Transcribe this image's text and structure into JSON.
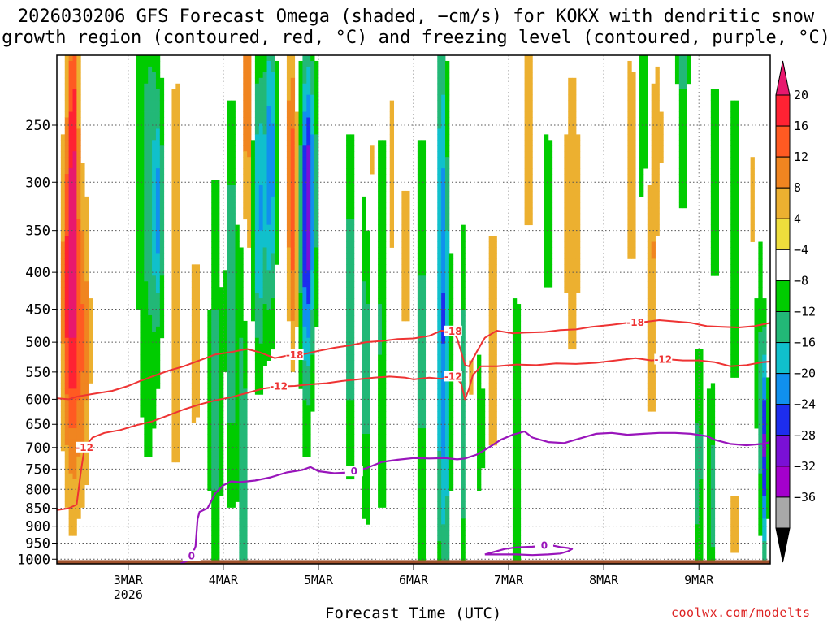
{
  "chart_data": {
    "type": "heatmap",
    "title": [
      "2026030206 GFS Forecast Omega (shaded, −cm/s) for KOKX with dendritic snow",
      "growth region (contoured, red, °C) and freezing level (contoured, purple, °C)"
    ],
    "xlabel": "Forecast Time (UTC)",
    "ylabel": "",
    "credit": "coolwx.com/modelts",
    "y_axis": {
      "units": "hPa",
      "range": [
        1015,
        200
      ],
      "ticks": [
        250,
        300,
        350,
        400,
        450,
        500,
        550,
        600,
        650,
        700,
        750,
        800,
        850,
        900,
        950,
        1000
      ]
    },
    "x_axis": {
      "units": "hours since 2026-03-02 06Z",
      "range": [
        0,
        180
      ],
      "ticks": [
        {
          "hour": 18,
          "label": "3MAR",
          "sublabel": "2026"
        },
        {
          "hour": 42,
          "label": "4MAR",
          "sublabel": ""
        },
        {
          "hour": 66,
          "label": "5MAR",
          "sublabel": ""
        },
        {
          "hour": 90,
          "label": "6MAR",
          "sublabel": ""
        },
        {
          "hour": 114,
          "label": "7MAR",
          "sublabel": ""
        },
        {
          "hour": 138,
          "label": "8MAR",
          "sublabel": ""
        },
        {
          "hour": 162,
          "label": "9MAR",
          "sublabel": ""
        }
      ]
    },
    "colorbar": {
      "labels": [
        "20",
        "16",
        "12",
        "8",
        "4",
        "−4",
        "−8",
        "−12",
        "−16",
        "−20",
        "−24",
        "−28",
        "−32",
        "−36"
      ],
      "levels": [
        20,
        16,
        12,
        8,
        4,
        -4,
        -8,
        -12,
        -16,
        -20,
        -24,
        -28,
        -32,
        -36
      ],
      "colors": [
        "#ff2233",
        "#ff5a22",
        "#f08520",
        "#ecb030",
        "#eede3c",
        "#ffffff",
        "#00cc00",
        "#22b877",
        "#10c0cc",
        "#1090ee",
        "#1d2dee",
        "#7a10d6",
        "#a400cc",
        "#a8a8a8"
      ],
      "over_color": "#e8186e",
      "under_color": "#000000"
    },
    "dgz_contours": [
      {
        "label": "-18",
        "color": "#ee3333",
        "label_at_hours": [
          60,
          100,
          146
        ],
        "points": [
          [
            0,
            598
          ],
          [
            3,
            600
          ],
          [
            5,
            595
          ],
          [
            9,
            590
          ],
          [
            14,
            584
          ],
          [
            18,
            575
          ],
          [
            21,
            566
          ],
          [
            24,
            558
          ],
          [
            28,
            548
          ],
          [
            32,
            540
          ],
          [
            36,
            530
          ],
          [
            40,
            520
          ],
          [
            44,
            516
          ],
          [
            48,
            511
          ],
          [
            51,
            516
          ],
          [
            55,
            526
          ],
          [
            58,
            522
          ],
          [
            62,
            520
          ],
          [
            66,
            514
          ],
          [
            70,
            509
          ],
          [
            74,
            505
          ],
          [
            78,
            500
          ],
          [
            82,
            498
          ],
          [
            86,
            495
          ],
          [
            90,
            494
          ],
          [
            94,
            490
          ],
          [
            97,
            482
          ],
          [
            100,
            483
          ],
          [
            101,
            494
          ],
          [
            102,
            515
          ],
          [
            103,
            538
          ],
          [
            104,
            540
          ],
          [
            106,
            515
          ],
          [
            108,
            493
          ],
          [
            111,
            482
          ],
          [
            115,
            486
          ],
          [
            118,
            485
          ],
          [
            123,
            484
          ],
          [
            127,
            481
          ],
          [
            131,
            480
          ],
          [
            135,
            476
          ],
          [
            140,
            473
          ],
          [
            144,
            470
          ],
          [
            148,
            469
          ],
          [
            152,
            466
          ],
          [
            156,
            468
          ],
          [
            160,
            470
          ],
          [
            164,
            475
          ],
          [
            168,
            476
          ],
          [
            172,
            477
          ],
          [
            176,
            475
          ],
          [
            180,
            470
          ]
        ]
      },
      {
        "label": "-12",
        "color": "#ee3333",
        "label_at_hours": [
          7,
          56,
          100,
          153
        ],
        "points": [
          [
            0,
            855
          ],
          [
            3,
            850
          ],
          [
            5,
            840
          ],
          [
            6,
            760
          ],
          [
            7,
            700
          ],
          [
            9,
            678
          ],
          [
            12,
            668
          ],
          [
            16,
            662
          ],
          [
            20,
            652
          ],
          [
            24,
            644
          ],
          [
            28,
            632
          ],
          [
            32,
            620
          ],
          [
            36,
            610
          ],
          [
            40,
            602
          ],
          [
            44,
            596
          ],
          [
            48,
            588
          ],
          [
            52,
            580
          ],
          [
            56,
            576
          ],
          [
            60,
            575
          ],
          [
            64,
            572
          ],
          [
            68,
            570
          ],
          [
            72,
            566
          ],
          [
            76,
            563
          ],
          [
            80,
            560
          ],
          [
            84,
            558
          ],
          [
            88,
            560
          ],
          [
            90,
            563
          ],
          [
            94,
            560
          ],
          [
            97,
            562
          ],
          [
            100,
            558
          ],
          [
            101,
            563
          ],
          [
            102,
            570
          ],
          [
            103,
            600
          ],
          [
            104,
            580
          ],
          [
            105,
            555
          ],
          [
            107,
            540
          ],
          [
            111,
            540
          ],
          [
            116,
            537
          ],
          [
            121,
            538
          ],
          [
            126,
            535
          ],
          [
            131,
            536
          ],
          [
            136,
            534
          ],
          [
            141,
            530
          ],
          [
            146,
            526
          ],
          [
            150,
            530
          ],
          [
            154,
            528
          ],
          [
            158,
            530
          ],
          [
            162,
            530
          ],
          [
            166,
            533
          ],
          [
            170,
            540
          ],
          [
            174,
            538
          ],
          [
            178,
            533
          ],
          [
            180,
            532
          ]
        ]
      }
    ],
    "freezing_level_contours": [
      {
        "label": "0",
        "color": "#9915bb",
        "label_at_hours": [
          34,
          75
        ],
        "points": [
          [
            31,
            1015
          ],
          [
            33,
            1005
          ],
          [
            34,
            990
          ],
          [
            35,
            960
          ],
          [
            35.5,
            880
          ],
          [
            36,
            860
          ],
          [
            38,
            850
          ],
          [
            40,
            810
          ],
          [
            42,
            790
          ],
          [
            44,
            780
          ],
          [
            46,
            782
          ],
          [
            50,
            778
          ],
          [
            54,
            770
          ],
          [
            58,
            758
          ],
          [
            62,
            752
          ],
          [
            64,
            745
          ],
          [
            66,
            755
          ],
          [
            70,
            760
          ],
          [
            74,
            758
          ],
          [
            78,
            748
          ],
          [
            82,
            733
          ],
          [
            86,
            728
          ],
          [
            90,
            724
          ],
          [
            94,
            725
          ],
          [
            98,
            724
          ],
          [
            101,
            727
          ],
          [
            103,
            725
          ],
          [
            106,
            716
          ],
          [
            109,
            700
          ],
          [
            112,
            683
          ],
          [
            115,
            672
          ],
          [
            118,
            665
          ],
          [
            120,
            678
          ],
          [
            124,
            688
          ],
          [
            128,
            690
          ],
          [
            132,
            680
          ],
          [
            136,
            670
          ],
          [
            140,
            668
          ],
          [
            144,
            672
          ],
          [
            148,
            670
          ],
          [
            152,
            668
          ],
          [
            156,
            668
          ],
          [
            160,
            670
          ],
          [
            164,
            675
          ],
          [
            166,
            683
          ],
          [
            170,
            692
          ],
          [
            174,
            695
          ],
          [
            178,
            692
          ],
          [
            180,
            688
          ]
        ]
      },
      {
        "label": "0",
        "color": "#9915bb",
        "label_at_hours": [
          123
        ],
        "points": [
          [
            108,
            985
          ],
          [
            110,
            978
          ],
          [
            113,
            968
          ],
          [
            116,
            963
          ],
          [
            120,
            961
          ],
          [
            123,
            958
          ],
          [
            125,
            957
          ],
          [
            127,
            962
          ],
          [
            129,
            965
          ],
          [
            130,
            968
          ],
          [
            129,
            975
          ],
          [
            127,
            982
          ],
          [
            124,
            985
          ],
          [
            120,
            987
          ],
          [
            116,
            985
          ],
          [
            112,
            985
          ],
          [
            108,
            985
          ]
        ]
      }
    ],
    "terrain": {
      "label": "surface",
      "color": "#a0522d",
      "pressure_top": 1003
    }
  }
}
